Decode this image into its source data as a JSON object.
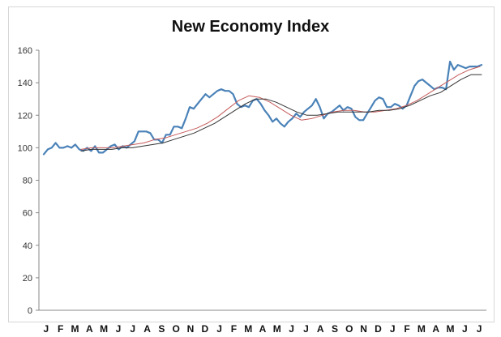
{
  "chart_data": {
    "type": "line",
    "title": "New Economy Index",
    "xlabel": "",
    "ylabel": "",
    "ylim": [
      0,
      160
    ],
    "yticks": [
      0,
      20,
      40,
      60,
      80,
      100,
      120,
      140,
      160
    ],
    "xticks": [
      "J",
      "F",
      "M",
      "A",
      "M",
      "J",
      "J",
      "A",
      "S",
      "O",
      "N",
      "D",
      "J",
      "F",
      "M",
      "A",
      "M",
      "J",
      "J",
      "A",
      "S",
      "O",
      "N",
      "D",
      "J",
      "F",
      "M",
      "A",
      "M",
      "J",
      "J"
    ],
    "grid": false,
    "legend": "none",
    "colors": {
      "index": "#4a82b8",
      "ma_short": "#c55a5a",
      "ma_long": "#333333"
    },
    "series": [
      {
        "role": "index",
        "values": [
          96,
          99,
          100,
          103,
          100,
          100,
          101,
          100,
          102,
          99,
          98,
          100,
          98,
          101,
          97,
          97,
          99,
          101,
          102,
          99,
          101,
          100,
          102,
          104,
          110,
          110,
          110,
          109,
          105,
          105,
          103,
          108,
          108,
          113,
          113,
          112,
          118,
          125,
          124,
          127,
          130,
          133,
          131,
          133,
          135,
          136,
          135,
          135,
          133,
          127,
          125,
          126,
          125,
          129,
          130,
          127,
          123,
          120,
          116,
          118,
          115,
          113,
          116,
          118,
          121,
          119,
          122,
          124,
          126,
          130,
          125,
          118,
          121,
          122,
          124,
          126,
          123,
          125,
          124,
          119,
          117,
          117,
          121,
          125,
          129,
          131,
          130,
          125,
          125,
          127,
          126,
          124,
          126,
          132,
          138,
          141,
          142,
          140,
          138,
          136,
          137,
          137,
          136,
          153,
          148,
          151,
          150,
          149,
          150,
          150,
          150,
          151
        ]
      },
      {
        "role": "ma_short",
        "values": [
          99,
          100,
          100,
          100,
          101,
          102,
          103,
          105,
          106,
          108,
          110,
          112,
          115,
          119,
          124,
          129,
          132,
          131,
          128,
          124,
          120,
          117,
          118,
          120,
          122,
          123,
          123,
          122,
          122,
          123,
          124,
          126,
          129,
          133,
          137,
          141,
          145,
          148,
          150
        ]
      },
      {
        "role": "ma_long",
        "values": [
          98,
          99,
          99,
          99,
          100,
          100,
          101,
          102,
          103,
          105,
          107,
          109,
          112,
          115,
          119,
          123,
          127,
          130,
          130,
          128,
          125,
          122,
          120,
          120,
          121,
          122,
          122,
          122,
          122,
          123,
          123,
          124,
          126,
          129,
          132,
          134,
          138,
          142,
          145,
          145
        ]
      }
    ]
  }
}
